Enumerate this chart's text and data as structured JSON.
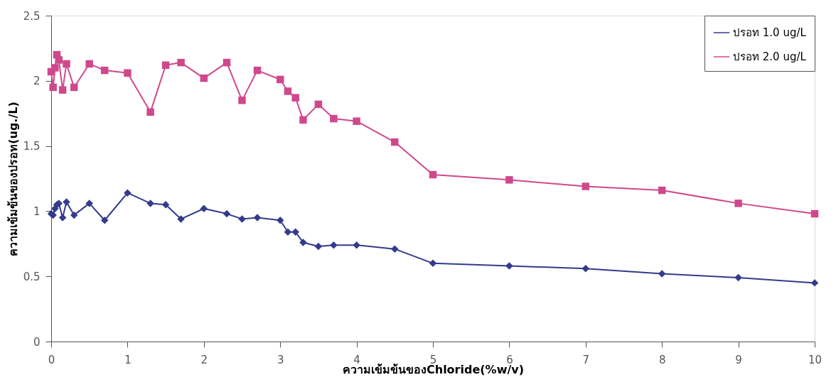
{
  "chart_data": {
    "type": "line",
    "xlabel": "ความเข้มข้นของChloride(%w/v)",
    "ylabel": "ความเข้มข้นของปรอท(ug./L)",
    "x": [
      0,
      0.025,
      0.05,
      0.075,
      0.1,
      0.15,
      0.2,
      0.3,
      0.5,
      0.7,
      1,
      1.3,
      1.5,
      1.7,
      2,
      2.3,
      2.5,
      2.7,
      3,
      3.1,
      3.2,
      3.3,
      3.5,
      3.7,
      4,
      4.5,
      5,
      6,
      7,
      8,
      9,
      10
    ],
    "series": [
      {
        "name": "ปรอท 1.0 ug/L",
        "color": "#333b8c",
        "marker": "diamond",
        "values": [
          0.98,
          0.97,
          1.02,
          1.05,
          1.06,
          0.95,
          1.07,
          0.97,
          1.06,
          0.93,
          1.14,
          1.06,
          1.05,
          0.94,
          1.02,
          0.98,
          0.94,
          0.95,
          0.93,
          0.84,
          0.84,
          0.76,
          0.73,
          0.74,
          0.74,
          0.71,
          0.6,
          0.58,
          0.56,
          0.52,
          0.49,
          0.45
        ]
      },
      {
        "name": "ปรอท 2.0 ug/L",
        "color": "#d0488c",
        "marker": "square",
        "values": [
          2.07,
          1.95,
          2.1,
          2.2,
          2.16,
          1.93,
          2.13,
          1.95,
          2.13,
          2.08,
          2.06,
          1.76,
          2.12,
          2.14,
          2.02,
          2.14,
          1.85,
          2.08,
          2.01,
          1.92,
          1.87,
          1.7,
          1.82,
          1.71,
          1.69,
          1.53,
          1.28,
          1.24,
          1.19,
          1.16,
          1.06,
          0.98
        ]
      }
    ],
    "xlim": [
      0,
      10
    ],
    "xticks": [
      0,
      1,
      2,
      3,
      4,
      5,
      6,
      7,
      8,
      9,
      10
    ],
    "ylim": [
      0,
      2.5
    ],
    "yticks": [
      0,
      0.5,
      1,
      1.5,
      2,
      2.5
    ],
    "grid": false,
    "legend": "top right",
    "line_style": "solid"
  }
}
